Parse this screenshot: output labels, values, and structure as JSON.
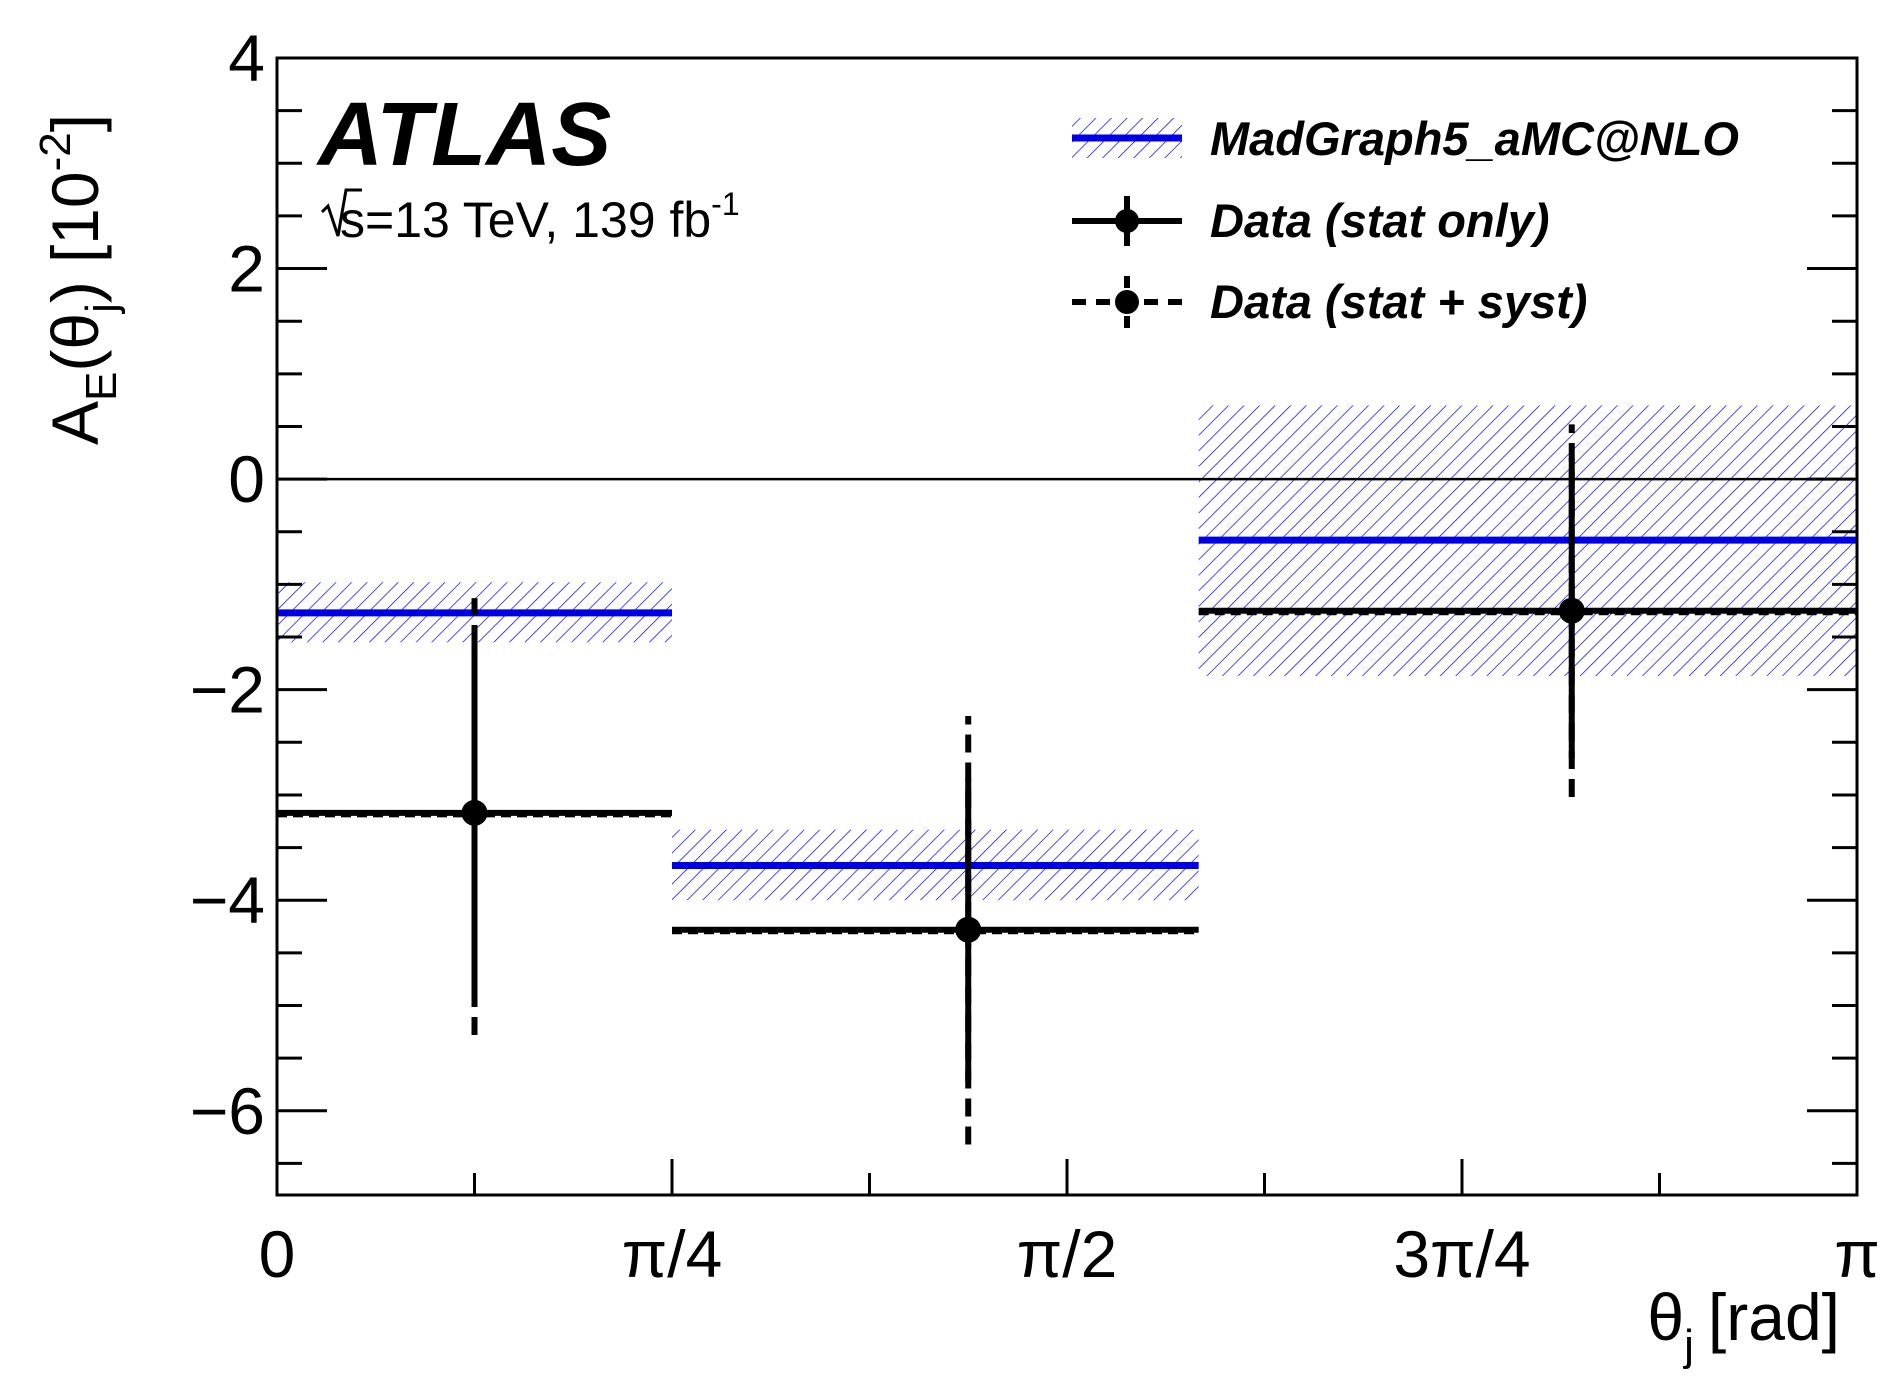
{
  "chart_data": {
    "type": "line",
    "experiment": "ATLAS",
    "subtitle_prefix": "s=13 TeV, 139 fb",
    "subtitle_sup": "-1",
    "xlabel": "θ",
    "xlabel_sub": "j",
    "xlabel_unit": "[rad]",
    "ylabel_A": "A",
    "ylabel_E": "E",
    "ylabel_open": "(θ",
    "ylabel_j": "j",
    "ylabel_close": ")",
    "ylabel_scale": "[10",
    "ylabel_exp": "-2",
    "ylabel_bracket": "]",
    "xlim": [
      0,
      3.14159
    ],
    "ylim": [
      -6.8,
      4
    ],
    "x_ticks": [
      {
        "value": 0,
        "label": "0"
      },
      {
        "value": 0.7854,
        "label": "π/4"
      },
      {
        "value": 1.5708,
        "label": "π/2"
      },
      {
        "value": 2.3562,
        "label": "3π/4"
      },
      {
        "value": 3.14159,
        "label": "π"
      }
    ],
    "y_ticks": [
      {
        "value": 4,
        "label": "4"
      },
      {
        "value": 2,
        "label": "2"
      },
      {
        "value": 0,
        "label": "0"
      },
      {
        "value": -2,
        "label": "−2"
      },
      {
        "value": -4,
        "label": "−4"
      },
      {
        "value": -6,
        "label": "−6"
      }
    ],
    "legend_position": "top-right",
    "legend": [
      {
        "label": "MadGraph5_aMC@NLO",
        "style": "band-line"
      },
      {
        "label": "Data (stat only)",
        "style": "solid-marker"
      },
      {
        "label": "Data (stat + syst)",
        "style": "dashed-marker"
      }
    ],
    "colors": {
      "prediction": "#0000e6",
      "data": "#000000"
    },
    "prediction": {
      "name": "MadGraph5_aMC@NLO",
      "bins": [
        {
          "x_low": 0,
          "x_high": 0.7854,
          "value": -1.27,
          "band_low": -1.55,
          "band_high": -0.98
        },
        {
          "x_low": 0.7854,
          "x_high": 1.8326,
          "value": -3.67,
          "band_low": -4.0,
          "band_high": -3.33
        },
        {
          "x_low": 1.8326,
          "x_high": 3.14159,
          "value": -0.58,
          "band_low": -1.87,
          "band_high": 0.7
        }
      ]
    },
    "data": {
      "name": "Data",
      "points": [
        {
          "x": 0.3927,
          "x_low": 0,
          "x_high": 0.7854,
          "y": -3.17,
          "stat_low": -4.85,
          "stat_high": -1.52,
          "tot_low": -5.28,
          "tot_high": -1.13
        },
        {
          "x": 1.3744,
          "x_low": 0.7854,
          "x_high": 1.8326,
          "y": -4.28,
          "stat_low": -5.72,
          "stat_high": -2.84,
          "tot_low": -6.32,
          "tot_high": -2.25
        },
        {
          "x": 2.5744,
          "x_low": 1.8326,
          "x_high": 3.14159,
          "y": -1.25,
          "stat_low": -2.65,
          "stat_high": 0.2,
          "tot_low": -3.02,
          "tot_high": 0.52
        }
      ]
    }
  }
}
